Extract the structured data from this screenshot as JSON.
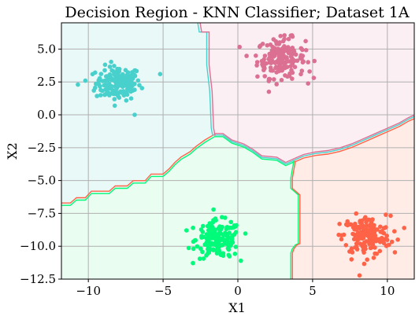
{
  "chart_data": {
    "type": "scatter",
    "title": "Decision Region - KNN Classifier; Dataset 1A",
    "xlabel": "X1",
    "ylabel": "X2",
    "xlim": [
      -11.8,
      11.8
    ],
    "ylim": [
      -12.5,
      7.0
    ],
    "grid": true,
    "xticks": [
      -10,
      -5,
      0,
      5,
      10
    ],
    "xtick_labels": [
      "−10",
      "−5",
      "0",
      "5",
      "10"
    ],
    "yticks": [
      5.0,
      2.5,
      0.0,
      -2.5,
      -5.0,
      -7.5,
      -10.0,
      -12.5
    ],
    "ytick_labels": [
      "5.0",
      "2.5",
      "0.0",
      "−2.5",
      "−5.0",
      "−7.5",
      "−10.0",
      "−12.5"
    ],
    "regions": [
      {
        "class": "teal",
        "fill": "#e8f9f8",
        "boundary_color": "#48d1cc"
      },
      {
        "class": "pink",
        "fill": "#fbeff3",
        "boundary_color": "#db7093"
      },
      {
        "class": "green",
        "fill": "#e9fdf1",
        "boundary_color": "#00fa7a"
      },
      {
        "class": "orange",
        "fill": "#ffece7",
        "boundary_color": "#ff6347"
      }
    ],
    "series": [
      {
        "color": "#48d1cc",
        "center": [
          -8.0,
          2.4
        ],
        "spread": [
          0.75,
          0.65
        ],
        "n": 170,
        "outliers": [
          [
            -10.7,
            2.3
          ],
          [
            -6.9,
            0.0
          ],
          [
            -5.2,
            3.1
          ],
          [
            -10.2,
            2.6
          ]
        ]
      },
      {
        "color": "#db7093",
        "center": [
          2.9,
          4.3
        ],
        "spread": [
          0.8,
          0.75
        ],
        "n": 170,
        "outliers": [
          [
            1.2,
            4.5
          ],
          [
            4.8,
            3.3
          ]
        ]
      },
      {
        "color": "#00fa7a",
        "center": [
          -1.3,
          -9.5
        ],
        "spread": [
          0.75,
          0.7
        ],
        "n": 170,
        "outliers": [
          [
            -3.0,
            -8.6
          ],
          [
            0.2,
            -11.1
          ],
          [
            -1.5,
            -7.9
          ]
        ]
      },
      {
        "color": "#ff6347",
        "center": [
          8.6,
          -9.2
        ],
        "spread": [
          0.8,
          0.75
        ],
        "n": 170,
        "outliers": [
          [
            6.8,
            -8.3
          ],
          [
            10.7,
            -9.5
          ],
          [
            7.6,
            -11.0
          ],
          [
            9.9,
            -7.6
          ]
        ]
      }
    ]
  }
}
